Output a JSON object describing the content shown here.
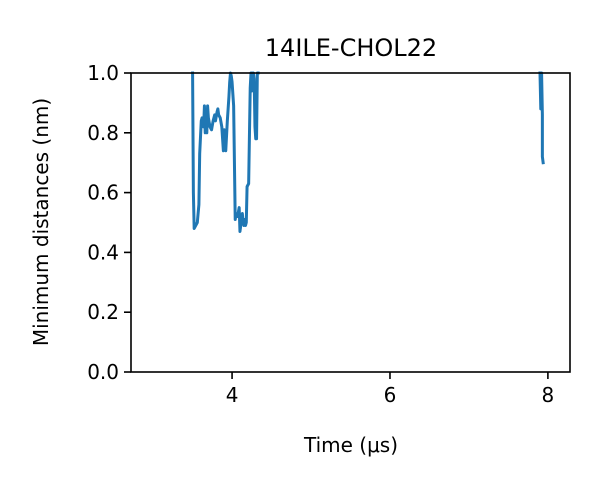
{
  "chart_data": {
    "type": "line",
    "title": "14ILE-CHOL22",
    "xlabel": "Time (μs)",
    "ylabel": "Minimum distances (nm)",
    "xlim": [
      2.72,
      8.28
    ],
    "ylim": [
      0.0,
      1.0
    ],
    "xticks": [
      4,
      6,
      8
    ],
    "yticks": [
      0.0,
      0.2,
      0.4,
      0.6,
      0.8,
      1.0
    ],
    "xtick_labels": [
      "4",
      "6",
      "8"
    ],
    "ytick_labels": [
      "0.0",
      "0.2",
      "0.4",
      "0.6",
      "0.8",
      "1.0"
    ],
    "grid": false,
    "line_color": "#1f77b4",
    "series": [
      {
        "x": [
          3.5,
          3.51,
          3.52,
          3.56,
          3.58,
          3.59,
          3.61,
          3.62,
          3.64,
          3.65,
          3.66,
          3.67,
          3.68,
          3.69,
          3.7,
          3.72,
          3.74,
          3.76,
          3.78,
          3.79,
          3.81,
          3.82,
          3.83,
          3.85,
          3.87,
          3.89,
          3.9,
          3.92,
          3.94,
          3.95,
          3.96,
          3.97,
          3.98,
          3.99,
          4.0,
          4.02,
          4.04,
          4.05,
          4.07,
          4.09,
          4.1,
          4.12,
          4.13,
          4.14,
          4.15,
          4.16,
          4.17,
          4.18,
          4.19,
          4.21,
          4.23,
          4.24,
          4.25,
          4.26,
          4.27,
          4.28,
          4.29,
          4.3,
          4.31,
          4.32,
          4.33
        ],
        "y": [
          1.0,
          0.6,
          0.48,
          0.5,
          0.56,
          0.73,
          0.84,
          0.85,
          0.82,
          0.89,
          0.8,
          0.84,
          0.8,
          0.89,
          0.85,
          0.82,
          0.81,
          0.84,
          0.86,
          0.84,
          0.87,
          0.88,
          0.86,
          0.85,
          0.82,
          0.74,
          0.81,
          0.74,
          0.84,
          0.88,
          0.92,
          0.97,
          1.0,
          0.99,
          0.97,
          0.89,
          0.51,
          0.53,
          0.52,
          0.55,
          0.47,
          0.51,
          0.53,
          0.5,
          0.49,
          0.51,
          0.49,
          0.5,
          0.62,
          0.63,
          0.95,
          1.0,
          0.94,
          1.0,
          1.0,
          0.98,
          0.82,
          0.78,
          0.78,
          1.0,
          1.0
        ]
      },
      {
        "x": [
          7.9,
          7.91,
          7.92,
          7.92,
          7.93,
          7.93,
          7.94
        ],
        "y": [
          1.0,
          0.88,
          0.97,
          1.0,
          0.86,
          0.72,
          0.7
        ]
      }
    ]
  }
}
